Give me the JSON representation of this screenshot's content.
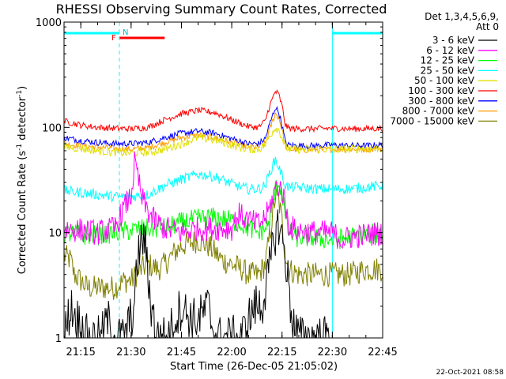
{
  "chart_data": {
    "type": "line",
    "title": "RHESSI Observing Summary Count Rates, Corrected",
    "xlabel": "Start Time (26-Dec-05 21:05:02)",
    "ylabel_main": "Corrected Count Rate (s",
    "ylabel_sup1": "-1",
    "ylabel_mid": " detector",
    "ylabel_sup2": "-1",
    "ylabel_end": ")",
    "yscale": "log",
    "xlim": [
      5,
      100
    ],
    "ylim": [
      1,
      1000
    ],
    "xticks": [
      {
        "v": 10,
        "label": "21:15"
      },
      {
        "v": 25,
        "label": "21:30"
      },
      {
        "v": 40,
        "label": "21:45"
      },
      {
        "v": 55,
        "label": "22:00"
      },
      {
        "v": 70,
        "label": "22:15"
      },
      {
        "v": 85,
        "label": "22:30"
      },
      {
        "v": 100,
        "label": "22:45"
      }
    ],
    "yticks": [
      {
        "v": 1,
        "label": "1"
      },
      {
        "v": 10,
        "label": "10"
      },
      {
        "v": 100,
        "label": "100"
      },
      {
        "v": 1000,
        "label": "1000"
      }
    ],
    "legend_header": [
      "Det 1,3,4,5,6,9,",
      "Att 0"
    ],
    "annotations": {
      "night_label": "N",
      "flare_label": "F",
      "footer": "22-Oct-2021 08:58"
    },
    "intervals": {
      "night": [
        [
          5,
          21.5
        ],
        [
          85,
          100
        ]
      ],
      "flare": [
        21.5,
        35
      ],
      "saa_lines": [
        21.5,
        85,
        100
      ]
    },
    "series": [
      {
        "name": "3 - 6 keV",
        "color": "#000000",
        "points": [
          [
            5,
            1
          ],
          [
            7,
            2
          ],
          [
            9,
            1.5
          ],
          [
            12,
            1
          ],
          [
            16,
            1
          ],
          [
            18,
            1.5
          ],
          [
            20,
            1
          ],
          [
            23,
            1
          ],
          [
            26,
            2
          ],
          [
            27,
            6
          ],
          [
            28,
            8
          ],
          [
            29,
            9
          ],
          [
            30,
            4
          ],
          [
            31,
            2
          ],
          [
            33,
            1
          ],
          [
            36,
            1
          ],
          [
            38,
            1.5
          ],
          [
            40,
            2
          ],
          [
            43,
            1.5
          ],
          [
            45,
            1.5
          ],
          [
            48,
            2
          ],
          [
            50,
            1
          ],
          [
            52,
            1
          ],
          [
            55,
            1
          ],
          [
            58,
            1
          ],
          [
            60,
            1.5
          ],
          [
            62,
            2
          ],
          [
            64,
            2
          ],
          [
            66,
            4
          ],
          [
            68,
            10
          ],
          [
            69,
            12
          ],
          [
            70,
            9
          ],
          [
            71,
            6
          ],
          [
            72,
            3
          ],
          [
            73,
            1.5
          ],
          [
            75,
            1
          ],
          [
            85,
            1
          ]
        ]
      },
      {
        "name": "6 - 12 keV",
        "color": "#ff00ff",
        "points": [
          [
            5,
            11
          ],
          [
            10,
            10.5
          ],
          [
            15,
            10
          ],
          [
            20,
            11
          ],
          [
            22,
            15
          ],
          [
            24,
            20
          ],
          [
            25,
            22
          ],
          [
            26,
            45
          ],
          [
            27,
            35
          ],
          [
            28,
            22
          ],
          [
            30,
            16
          ],
          [
            32,
            13
          ],
          [
            35,
            11
          ],
          [
            40,
            10
          ],
          [
            45,
            11
          ],
          [
            50,
            11
          ],
          [
            55,
            11
          ],
          [
            57,
            15
          ],
          [
            60,
            13
          ],
          [
            63,
            12
          ],
          [
            65,
            14
          ],
          [
            66,
            16
          ],
          [
            68,
            26
          ],
          [
            69,
            28
          ],
          [
            70,
            25
          ],
          [
            71,
            18
          ],
          [
            72,
            12
          ],
          [
            74,
            10.5
          ],
          [
            80,
            10
          ],
          [
            85,
            10
          ],
          [
            88,
            8.5
          ],
          [
            90,
            9
          ],
          [
            95,
            9.5
          ],
          [
            100,
            10
          ]
        ]
      },
      {
        "name": "12 - 25 keV",
        "color": "#00ff00",
        "points": [
          [
            5,
            10
          ],
          [
            10,
            9.5
          ],
          [
            15,
            9.5
          ],
          [
            20,
            10
          ],
          [
            25,
            10.5
          ],
          [
            30,
            11
          ],
          [
            35,
            11
          ],
          [
            40,
            12.5
          ],
          [
            45,
            13.5
          ],
          [
            50,
            14
          ],
          [
            55,
            13
          ],
          [
            58,
            12
          ],
          [
            60,
            11
          ],
          [
            63,
            10
          ],
          [
            65,
            11
          ],
          [
            66,
            12
          ],
          [
            68,
            25
          ],
          [
            69,
            30
          ],
          [
            70,
            25
          ],
          [
            71,
            14
          ],
          [
            72,
            10
          ],
          [
            74,
            9
          ],
          [
            80,
            9
          ],
          [
            85,
            8.5
          ],
          [
            90,
            9
          ],
          [
            95,
            9.5
          ],
          [
            100,
            10
          ]
        ]
      },
      {
        "name": "25 - 50 keV",
        "color": "#00ffff",
        "points": [
          [
            5,
            25
          ],
          [
            10,
            24
          ],
          [
            15,
            23
          ],
          [
            20,
            22
          ],
          [
            25,
            22
          ],
          [
            30,
            23
          ],
          [
            35,
            28
          ],
          [
            40,
            32
          ],
          [
            45,
            36
          ],
          [
            50,
            34
          ],
          [
            55,
            29
          ],
          [
            58,
            27
          ],
          [
            60,
            26
          ],
          [
            63,
            26
          ],
          [
            65,
            28
          ],
          [
            66,
            35
          ],
          [
            68,
            50
          ],
          [
            69,
            42
          ],
          [
            70,
            35
          ],
          [
            71,
            28
          ],
          [
            72,
            27
          ],
          [
            75,
            27
          ],
          [
            80,
            26
          ],
          [
            85,
            26
          ],
          [
            90,
            26
          ],
          [
            95,
            27
          ],
          [
            100,
            28
          ]
        ]
      },
      {
        "name": "50 - 100 keV",
        "color": "#e0e000",
        "points": [
          [
            5,
            65
          ],
          [
            10,
            63
          ],
          [
            15,
            60
          ],
          [
            20,
            58
          ],
          [
            25,
            57
          ],
          [
            30,
            58
          ],
          [
            35,
            62
          ],
          [
            40,
            70
          ],
          [
            45,
            80
          ],
          [
            50,
            76
          ],
          [
            55,
            68
          ],
          [
            58,
            64
          ],
          [
            60,
            62
          ],
          [
            63,
            62
          ],
          [
            65,
            68
          ],
          [
            66,
            80
          ],
          [
            68,
            100
          ],
          [
            69,
            95
          ],
          [
            70,
            80
          ],
          [
            71,
            65
          ],
          [
            72,
            62
          ],
          [
            75,
            62
          ],
          [
            80,
            62
          ],
          [
            85,
            62
          ],
          [
            90,
            62
          ],
          [
            95,
            63
          ],
          [
            100,
            63
          ]
        ]
      },
      {
        "name": "100 - 300 keV",
        "color": "#ff0000",
        "points": [
          [
            5,
            115
          ],
          [
            10,
            105
          ],
          [
            15,
            100
          ],
          [
            20,
            98
          ],
          [
            25,
            97
          ],
          [
            30,
            100
          ],
          [
            35,
            118
          ],
          [
            40,
            135
          ],
          [
            45,
            145
          ],
          [
            50,
            138
          ],
          [
            55,
            118
          ],
          [
            58,
            108
          ],
          [
            60,
            102
          ],
          [
            63,
            100
          ],
          [
            65,
            115
          ],
          [
            66,
            150
          ],
          [
            68,
            220
          ],
          [
            69,
            205
          ],
          [
            70,
            160
          ],
          [
            71,
            105
          ],
          [
            72,
            98
          ],
          [
            75,
            97
          ],
          [
            80,
            97
          ],
          [
            85,
            98
          ],
          [
            90,
            97
          ],
          [
            95,
            97
          ],
          [
            100,
            98
          ]
        ]
      },
      {
        "name": "300 - 800 keV",
        "color": "#0000ff",
        "points": [
          [
            5,
            80
          ],
          [
            10,
            75
          ],
          [
            15,
            72
          ],
          [
            20,
            70
          ],
          [
            25,
            70
          ],
          [
            30,
            72
          ],
          [
            35,
            80
          ],
          [
            40,
            88
          ],
          [
            45,
            92
          ],
          [
            50,
            88
          ],
          [
            55,
            78
          ],
          [
            58,
            73
          ],
          [
            60,
            70
          ],
          [
            63,
            70
          ],
          [
            65,
            78
          ],
          [
            66,
            100
          ],
          [
            68,
            155
          ],
          [
            69,
            140
          ],
          [
            70,
            105
          ],
          [
            71,
            72
          ],
          [
            72,
            68
          ],
          [
            75,
            67
          ],
          [
            80,
            67
          ],
          [
            85,
            68
          ],
          [
            90,
            67
          ],
          [
            95,
            67
          ],
          [
            100,
            68
          ]
        ]
      },
      {
        "name": "800 - 7000 keV",
        "color": "#ff9900",
        "points": [
          [
            5,
            70
          ],
          [
            10,
            67
          ],
          [
            15,
            65
          ],
          [
            20,
            63
          ],
          [
            25,
            62
          ],
          [
            30,
            64
          ],
          [
            35,
            72
          ],
          [
            40,
            80
          ],
          [
            45,
            85
          ],
          [
            50,
            80
          ],
          [
            55,
            72
          ],
          [
            58,
            68
          ],
          [
            60,
            65
          ],
          [
            63,
            65
          ],
          [
            65,
            70
          ],
          [
            66,
            90
          ],
          [
            68,
            135
          ],
          [
            69,
            125
          ],
          [
            70,
            95
          ],
          [
            71,
            66
          ],
          [
            72,
            62
          ],
          [
            75,
            61
          ],
          [
            80,
            61
          ],
          [
            85,
            62
          ],
          [
            90,
            62
          ],
          [
            95,
            62
          ],
          [
            100,
            63
          ]
        ]
      },
      {
        "name": "7000 - 15000 keV",
        "color": "#808000",
        "points": [
          [
            5,
            6
          ],
          [
            7,
            5.5
          ],
          [
            8,
            4
          ],
          [
            10,
            3.5
          ],
          [
            12,
            3
          ],
          [
            15,
            3
          ],
          [
            20,
            3
          ],
          [
            23,
            3.5
          ],
          [
            25,
            3.5
          ],
          [
            28,
            4.5
          ],
          [
            30,
            5
          ],
          [
            33,
            4.5
          ],
          [
            35,
            5
          ],
          [
            38,
            6.5
          ],
          [
            40,
            7.5
          ],
          [
            45,
            8.5
          ],
          [
            48,
            7.5
          ],
          [
            50,
            6.5
          ],
          [
            52,
            5.5
          ],
          [
            55,
            5
          ],
          [
            58,
            4.5
          ],
          [
            60,
            4
          ],
          [
            63,
            4
          ],
          [
            65,
            5
          ],
          [
            66,
            8
          ],
          [
            68,
            22
          ],
          [
            69,
            20
          ],
          [
            70,
            13
          ],
          [
            71,
            6
          ],
          [
            72,
            4.5
          ],
          [
            75,
            4
          ],
          [
            80,
            4
          ],
          [
            85,
            4
          ],
          [
            90,
            4
          ],
          [
            95,
            4.5
          ],
          [
            100,
            4.5
          ]
        ]
      }
    ]
  }
}
